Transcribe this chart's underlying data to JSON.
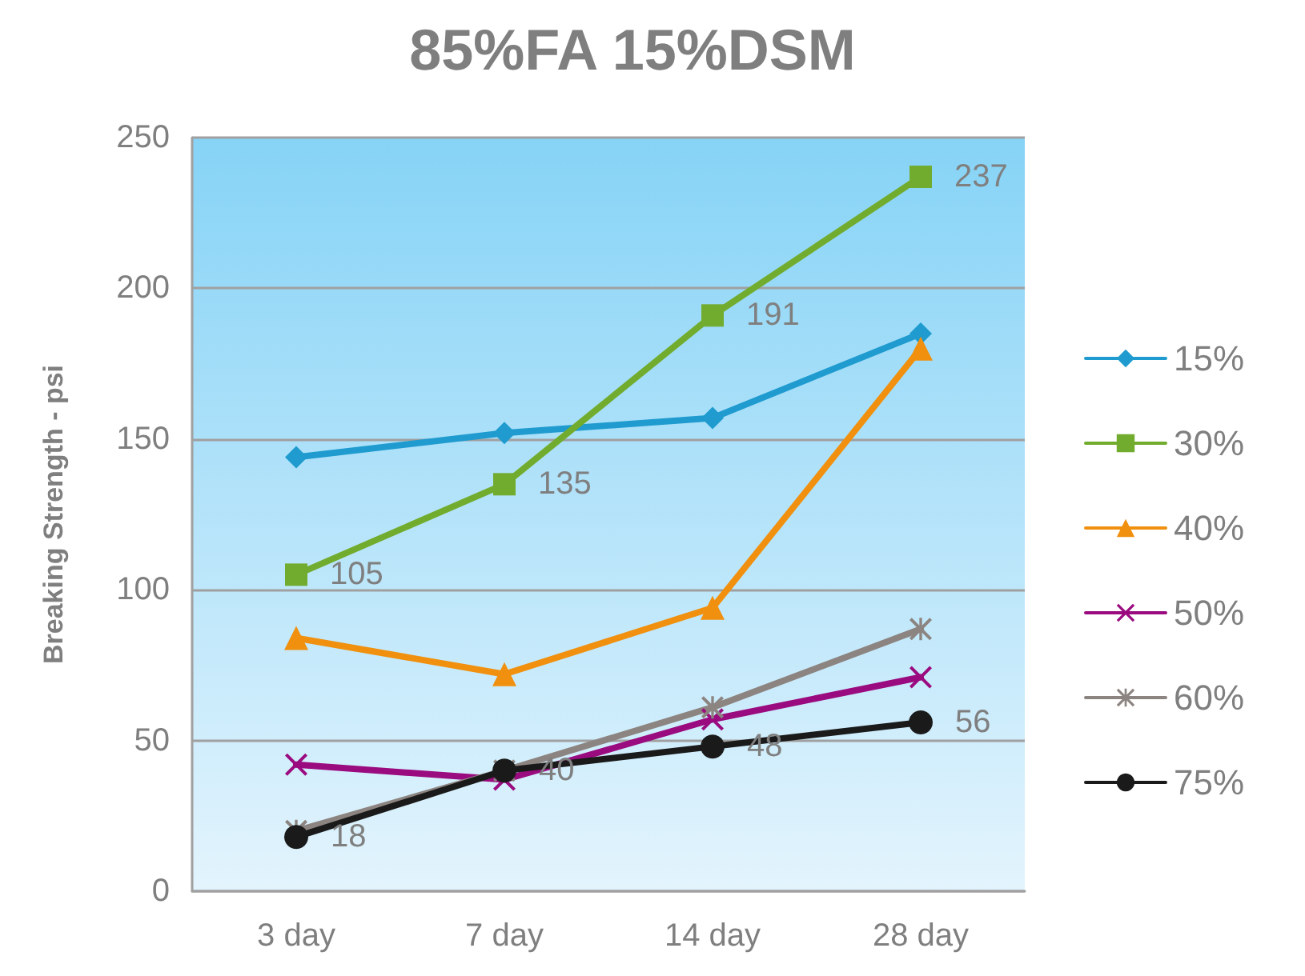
{
  "chart_data": {
    "type": "line",
    "title": "85%FA 15%DSM",
    "ylabel": "Breaking Strength - psi",
    "categories": [
      "3 day",
      "7 day",
      "14 day",
      "28 day"
    ],
    "ylim": [
      0,
      250
    ],
    "yticks": [
      0,
      50,
      100,
      150,
      200,
      250
    ],
    "grid": "y",
    "legend": "right",
    "line_style": "solid",
    "series": [
      {
        "name": "15%",
        "color": "#1f9bcf",
        "marker": "diamond",
        "values": [
          144,
          152,
          157,
          185
        ]
      },
      {
        "name": "30%",
        "color": "#72ac2e",
        "marker": "square",
        "values": [
          105,
          135,
          191,
          237
        ],
        "value_labels": [
          "105",
          "135",
          "191",
          "237"
        ]
      },
      {
        "name": "40%",
        "color": "#f0900e",
        "marker": "triangle",
        "values": [
          84,
          72,
          94,
          180
        ]
      },
      {
        "name": "50%",
        "color": "#9a0b7f",
        "marker": "cross",
        "values": [
          42,
          37,
          57,
          71
        ]
      },
      {
        "name": "60%",
        "color": "#8c8480",
        "marker": "star",
        "values": [
          20,
          40,
          61,
          87
        ]
      },
      {
        "name": "75%",
        "color": "#1a1a1a",
        "marker": "circle",
        "values": [
          18,
          40,
          48,
          56
        ],
        "value_labels": [
          "18",
          "40",
          "48",
          "56"
        ]
      }
    ]
  }
}
